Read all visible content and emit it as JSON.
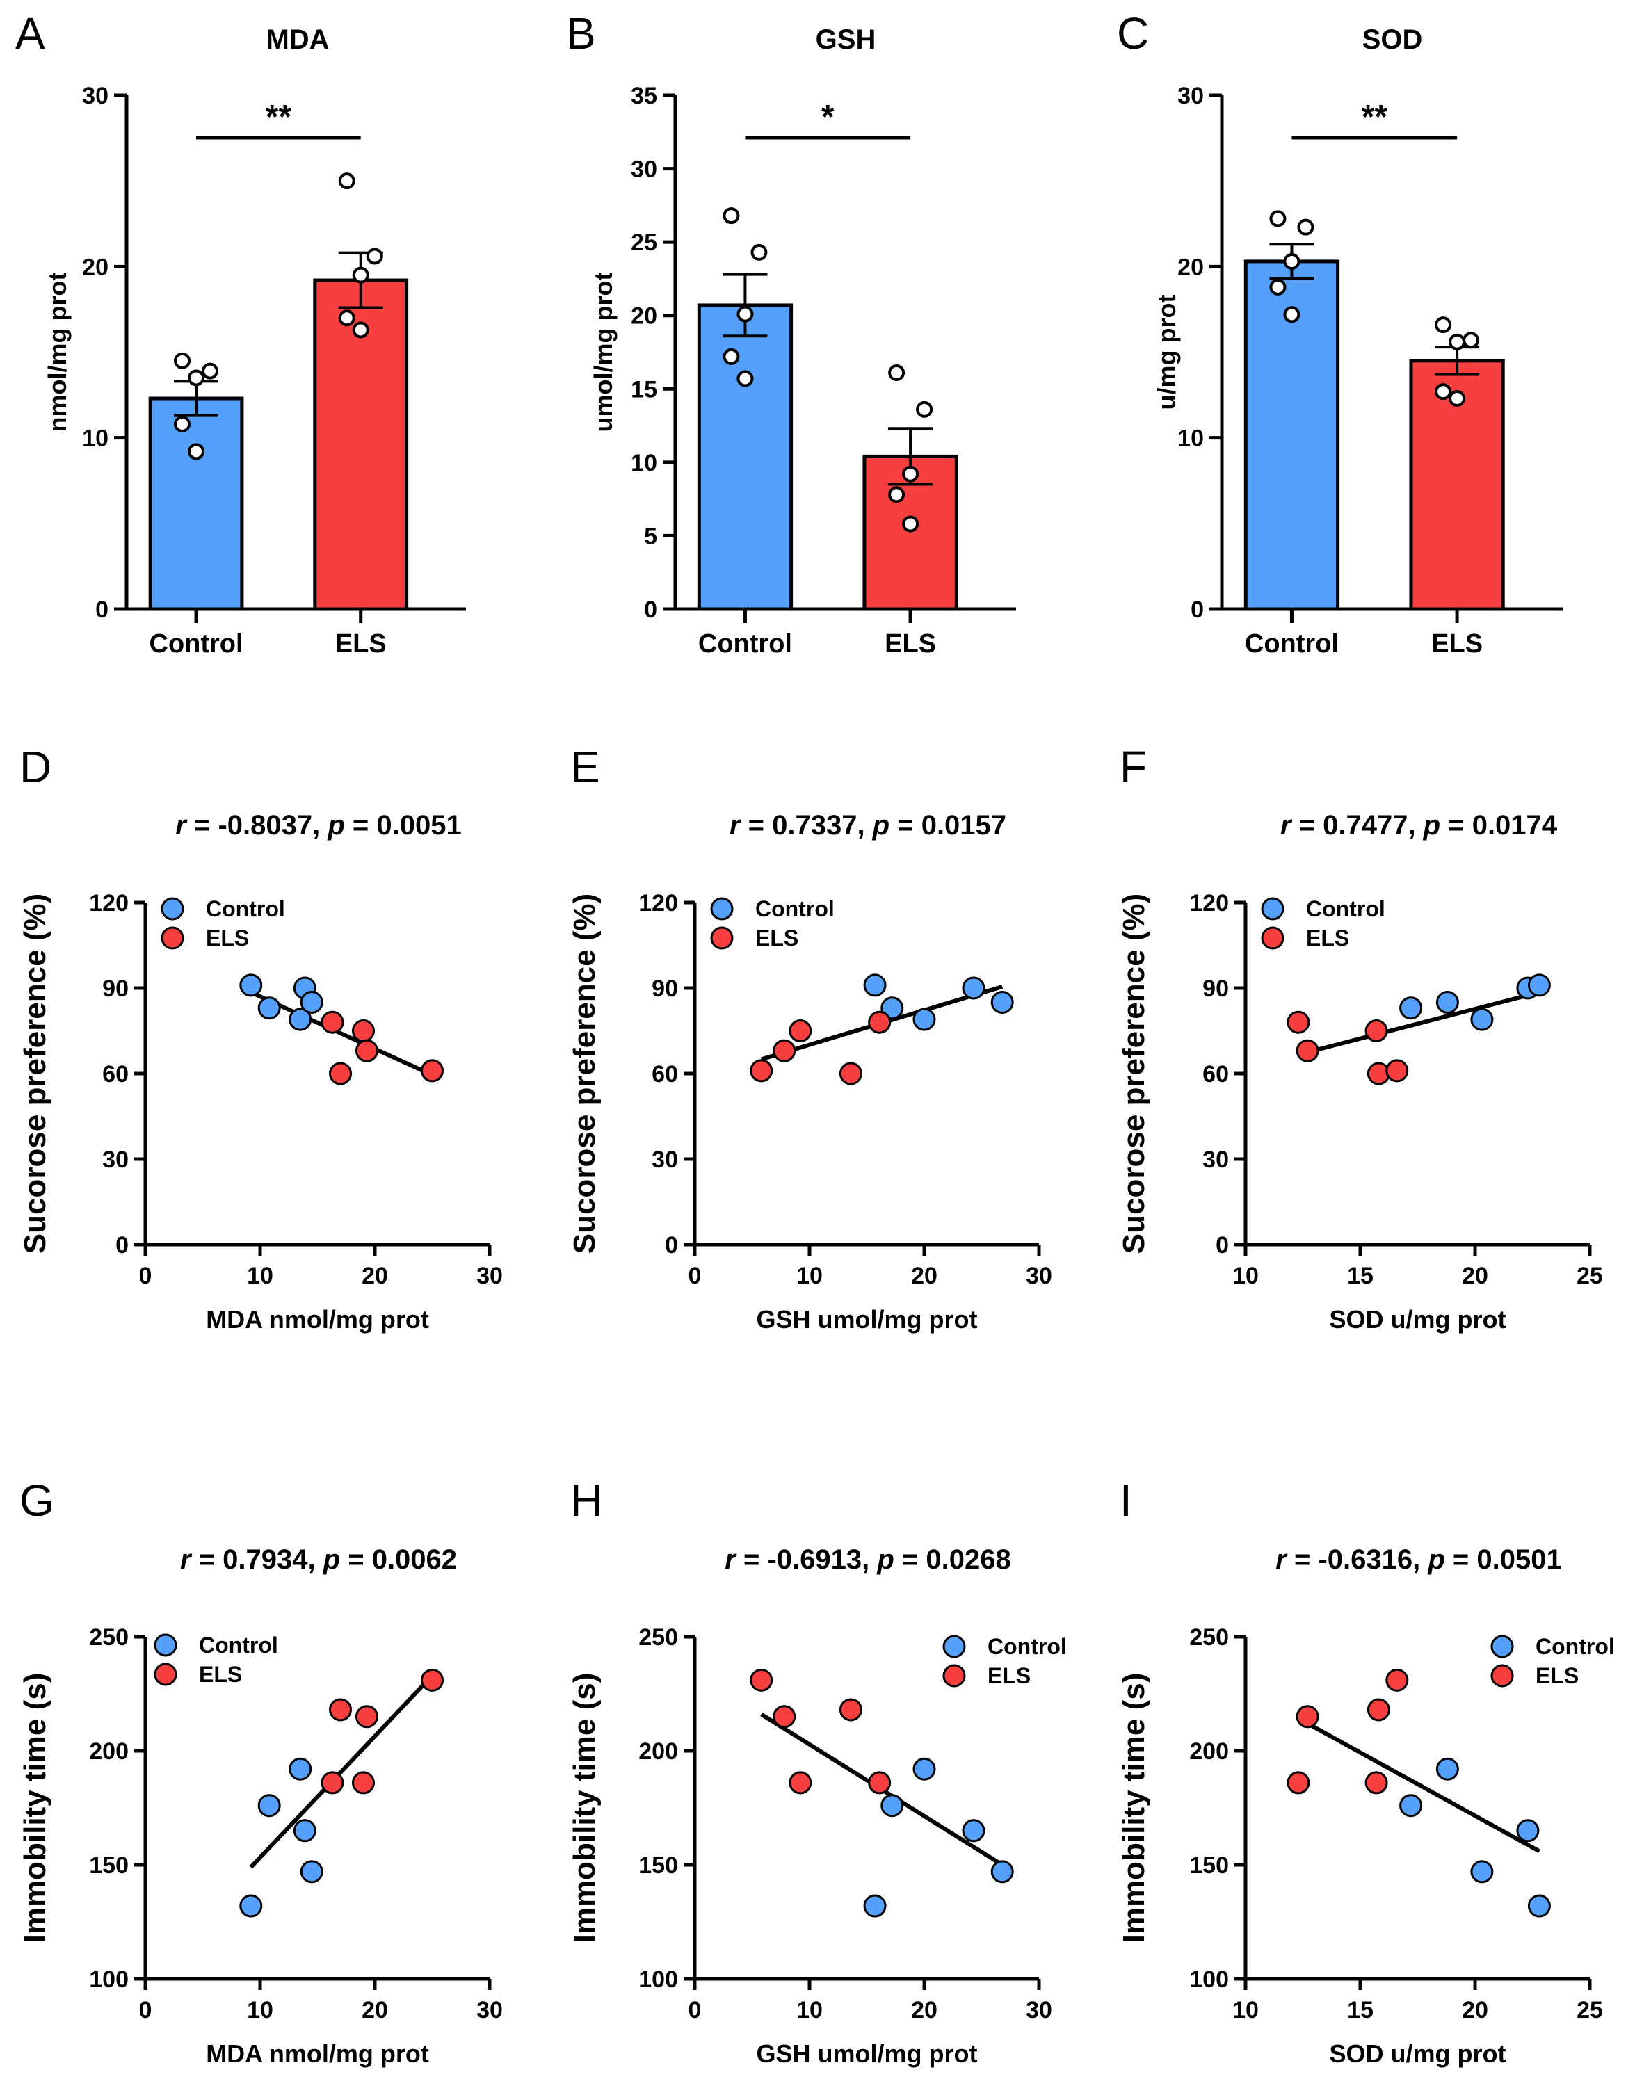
{
  "colors": {
    "control": "#55a0fb",
    "els": "#f83f3f",
    "axis": "#000000",
    "point_open": "#ffffff"
  },
  "chart_data": [
    {
      "panel": "A",
      "type": "bar",
      "title": "MDA",
      "ylabel": "nmol/mg prot",
      "ylim": [
        0,
        30
      ],
      "yticks": [
        0,
        10,
        20,
        30
      ],
      "categories": [
        "Control",
        "ELS"
      ],
      "means": [
        12.3,
        19.2
      ],
      "sem": [
        1.0,
        1.6
      ],
      "points": [
        [
          14.5,
          13.9,
          13.5,
          10.8,
          9.2
        ],
        [
          25.0,
          20.6,
          19.5,
          17.0,
          16.3
        ]
      ],
      "significance": "**"
    },
    {
      "panel": "B",
      "type": "bar",
      "title": "GSH",
      "ylabel": "umol/mg prot",
      "ylim": [
        0,
        35
      ],
      "yticks": [
        0,
        5,
        10,
        15,
        20,
        25,
        30,
        35
      ],
      "categories": [
        "Control",
        "ELS"
      ],
      "means": [
        20.7,
        10.4
      ],
      "sem": [
        2.1,
        1.9
      ],
      "points": [
        [
          26.8,
          24.3,
          20.1,
          17.2,
          15.7
        ],
        [
          16.1,
          13.6,
          9.2,
          7.8,
          5.8
        ]
      ],
      "significance": "*"
    },
    {
      "panel": "C",
      "type": "bar",
      "title": "SOD",
      "ylabel": "u/mg prot",
      "ylim": [
        0,
        30
      ],
      "yticks": [
        0,
        10,
        20,
        30
      ],
      "categories": [
        "Control",
        "ELS"
      ],
      "means": [
        20.3,
        14.5
      ],
      "sem": [
        1.0,
        0.8
      ],
      "points": [
        [
          22.8,
          22.3,
          20.3,
          18.8,
          17.2
        ],
        [
          16.6,
          15.7,
          15.6,
          12.7,
          12.3
        ]
      ],
      "significance": "**"
    },
    {
      "panel": "D",
      "type": "scatter",
      "stat": "r = -0.8037, p = 0.0051",
      "xlabel": "MDA nmol/mg prot",
      "ylabel": "Sucorose preference (%)",
      "xlim": [
        0,
        30
      ],
      "ylim": [
        0,
        120
      ],
      "xticks": [
        0,
        10,
        20,
        30
      ],
      "yticks": [
        0,
        30,
        60,
        90,
        120
      ],
      "legend": [
        "Control",
        "ELS"
      ],
      "legend_position": "top-left",
      "series": [
        {
          "name": "Control",
          "x": [
            9.2,
            10.8,
            13.5,
            13.9,
            14.5
          ],
          "y": [
            91,
            83,
            79,
            90,
            85
          ]
        },
        {
          "name": "ELS",
          "x": [
            16.3,
            17.0,
            19.0,
            19.3,
            25.0
          ],
          "y": [
            78,
            60,
            75,
            68,
            61
          ]
        }
      ],
      "fit": {
        "x": [
          9.2,
          25.0
        ],
        "y": [
          88.5,
          59.5
        ]
      }
    },
    {
      "panel": "E",
      "type": "scatter",
      "stat": "r = 0.7337, p = 0.0157",
      "xlabel": "GSH umol/mg prot",
      "ylabel": "Sucorose preference (%)",
      "xlim": [
        0,
        30
      ],
      "ylim": [
        0,
        120
      ],
      "xticks": [
        0,
        10,
        20,
        30
      ],
      "yticks": [
        0,
        30,
        60,
        90,
        120
      ],
      "legend": [
        "Control",
        "ELS"
      ],
      "legend_position": "top-left",
      "series": [
        {
          "name": "Control",
          "x": [
            15.7,
            17.2,
            20.0,
            24.3,
            26.8
          ],
          "y": [
            91,
            83,
            79,
            90,
            85
          ]
        },
        {
          "name": "ELS",
          "x": [
            5.8,
            7.8,
            9.2,
            13.6,
            16.1
          ],
          "y": [
            61,
            68,
            75,
            60,
            78
          ]
        }
      ],
      "fit": {
        "x": [
          5.8,
          26.8
        ],
        "y": [
          65.0,
          90.5
        ]
      }
    },
    {
      "panel": "F",
      "type": "scatter",
      "stat": "r = 0.7477, p = 0.0174",
      "xlabel": "SOD u/mg prot",
      "ylabel": "Sucorose preference (%)",
      "xlim": [
        10,
        25
      ],
      "ylim": [
        0,
        120
      ],
      "xticks": [
        10,
        15,
        20,
        25
      ],
      "yticks": [
        0,
        30,
        60,
        90,
        120
      ],
      "legend": [
        "Control",
        "ELS"
      ],
      "legend_position": "top-left",
      "series": [
        {
          "name": "Control",
          "x": [
            17.2,
            18.8,
            20.3,
            22.3,
            22.8
          ],
          "y": [
            83,
            85,
            79,
            90,
            91
          ]
        },
        {
          "name": "ELS",
          "x": [
            12.3,
            12.7,
            15.7,
            15.8,
            16.6
          ],
          "y": [
            78,
            68,
            75,
            60,
            61
          ]
        }
      ],
      "fit": {
        "x": [
          12.7,
          22.8
        ],
        "y": [
          67.5,
          88.5
        ]
      }
    },
    {
      "panel": "G",
      "type": "scatter",
      "stat": "r = 0.7934, p = 0.0062",
      "xlabel": "MDA nmol/mg prot",
      "ylabel": "Immobility time (s)",
      "xlim": [
        0,
        30
      ],
      "ylim": [
        100,
        250
      ],
      "xticks": [
        0,
        10,
        20,
        30
      ],
      "yticks": [
        100,
        150,
        200,
        250
      ],
      "legend": [
        "Control",
        "ELS"
      ],
      "legend_position": "top-left",
      "series": [
        {
          "name": "Control",
          "x": [
            9.2,
            10.8,
            13.5,
            13.9,
            14.5
          ],
          "y": [
            132,
            176,
            192,
            165,
            147
          ]
        },
        {
          "name": "ELS",
          "x": [
            16.3,
            17.0,
            19.0,
            19.3,
            25.0
          ],
          "y": [
            186,
            218,
            186,
            215,
            231
          ]
        }
      ],
      "fit": {
        "x": [
          9.2,
          25.0
        ],
        "y": [
          149,
          233
        ]
      }
    },
    {
      "panel": "H",
      "type": "scatter",
      "stat": "r = -0.6913, p = 0.0268",
      "xlabel": "GSH umol/mg prot",
      "ylabel": "Immobility time (s)",
      "xlim": [
        0,
        30
      ],
      "ylim": [
        100,
        250
      ],
      "xticks": [
        0,
        10,
        20,
        30
      ],
      "yticks": [
        100,
        150,
        200,
        250
      ],
      "legend": [
        "Control",
        "ELS"
      ],
      "legend_position": "top-right",
      "series": [
        {
          "name": "Control",
          "x": [
            15.7,
            17.2,
            20.0,
            24.3,
            26.8
          ],
          "y": [
            132,
            176,
            192,
            165,
            147
          ]
        },
        {
          "name": "ELS",
          "x": [
            5.8,
            7.8,
            9.2,
            13.6,
            16.1
          ],
          "y": [
            231,
            215,
            186,
            218,
            186
          ]
        }
      ],
      "fit": {
        "x": [
          5.8,
          26.8
        ],
        "y": [
          216,
          150
        ]
      }
    },
    {
      "panel": "I",
      "type": "scatter",
      "stat": "r = -0.6316, p = 0.0501",
      "xlabel": "SOD u/mg prot",
      "ylabel": "Immobility time (s)",
      "xlim": [
        10,
        25
      ],
      "ylim": [
        100,
        250
      ],
      "xticks": [
        10,
        15,
        20,
        25
      ],
      "yticks": [
        100,
        150,
        200,
        250
      ],
      "legend": [
        "Control",
        "ELS"
      ],
      "legend_position": "top-right",
      "series": [
        {
          "name": "Control",
          "x": [
            17.2,
            18.8,
            20.3,
            22.3,
            22.8
          ],
          "y": [
            176,
            192,
            147,
            165,
            132
          ]
        },
        {
          "name": "ELS",
          "x": [
            12.3,
            12.7,
            15.7,
            15.8,
            16.6
          ],
          "y": [
            186,
            215,
            186,
            218,
            231
          ]
        }
      ],
      "fit": {
        "x": [
          12.7,
          22.8
        ],
        "y": [
          212,
          156
        ]
      }
    }
  ]
}
